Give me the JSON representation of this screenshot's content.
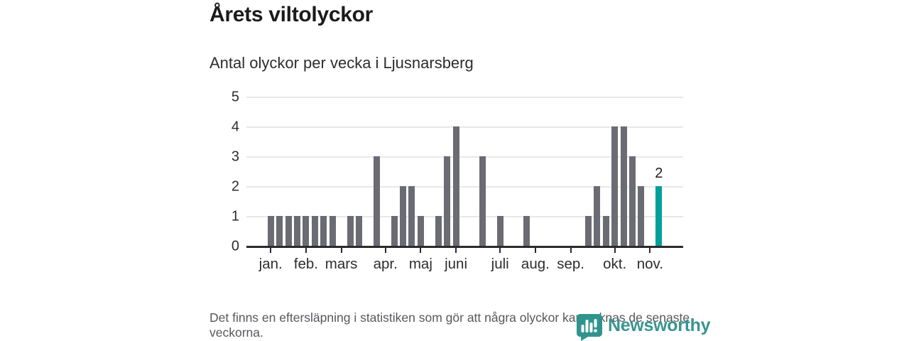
{
  "title": "Årets viltolyckor",
  "subtitle": "Antal olyckor per vecka i Ljusnarsberg",
  "footnote": "Det finns en eftersläpning i statistiken som gör att några olyckor kan saknas de senaste veckorna.",
  "logo": {
    "name": "Newsworthy"
  },
  "colors": {
    "bar": "#6b6b73",
    "highlight": "#00a09a",
    "gridline": "#e8e8e8",
    "axis": "#2b2b2b",
    "title_text": "#1b1b1b",
    "label_text": "#2d2d2d",
    "muted_text": "#58585c",
    "logo_teal": "#3a958f"
  },
  "chart_data": {
    "type": "bar",
    "title": "Årets viltolyckor",
    "subtitle": "Antal olyckor per vecka i Ljusnarsberg",
    "x_unit": "week",
    "categories": [
      "v1",
      "v2",
      "v3",
      "v4",
      "v5",
      "v6",
      "v7",
      "v8",
      "v9",
      "v10",
      "v11",
      "v12",
      "v13",
      "v14",
      "v15",
      "v16",
      "v17",
      "v18",
      "v19",
      "v20",
      "v21",
      "v22",
      "v23",
      "v24",
      "v25",
      "v26",
      "v27",
      "v28",
      "v29",
      "v30",
      "v31",
      "v32",
      "v33",
      "v34",
      "v35",
      "v36",
      "v37",
      "v38",
      "v39",
      "v40",
      "v41",
      "v42",
      "v43",
      "v44",
      "v45"
    ],
    "values": [
      1,
      1,
      1,
      1,
      1,
      1,
      1,
      1,
      0,
      1,
      1,
      0,
      3,
      0,
      1,
      2,
      2,
      1,
      0,
      1,
      3,
      4,
      0,
      0,
      3,
      0,
      1,
      0,
      0,
      1,
      0,
      0,
      0,
      0,
      0,
      0,
      1,
      2,
      1,
      4,
      4,
      3,
      2,
      0,
      2
    ],
    "highlight_index": 44,
    "highlight_label": "2",
    "ylim": [
      0,
      5
    ],
    "yticks": [
      0,
      1,
      2,
      3,
      4,
      5
    ],
    "month_ticks": [
      {
        "label": "jan.",
        "week": 1
      },
      {
        "label": "feb.",
        "week": 5
      },
      {
        "label": "mars",
        "week": 9
      },
      {
        "label": "apr.",
        "week": 14
      },
      {
        "label": "maj",
        "week": 18
      },
      {
        "label": "juni",
        "week": 22
      },
      {
        "label": "juli",
        "week": 27
      },
      {
        "label": "aug.",
        "week": 31
      },
      {
        "label": "sep.",
        "week": 35
      },
      {
        "label": "okt.",
        "week": 40
      },
      {
        "label": "nov.",
        "week": 44
      }
    ],
    "grid": true,
    "legend": false
  }
}
